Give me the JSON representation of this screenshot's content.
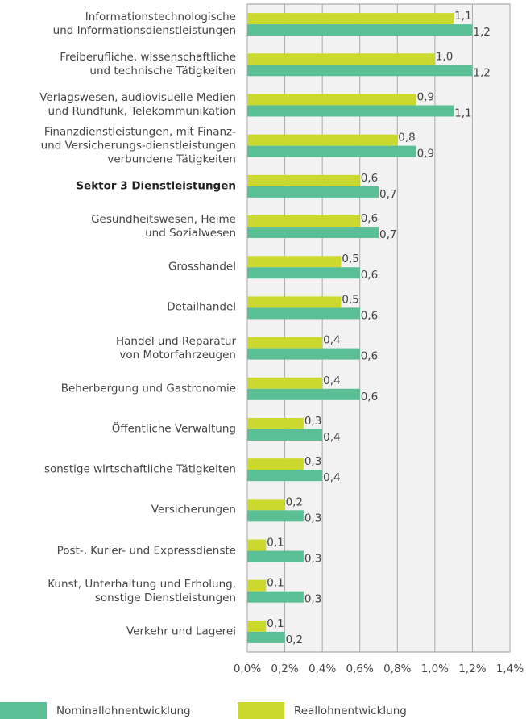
{
  "chart_data": {
    "type": "bar",
    "orientation": "horizontal",
    "categories": [
      "Informationstechnologische\nund Informationsdienstleistungen",
      "Freiberufliche, wissenschaftliche\nund technische Tätigkeiten",
      "Verlagswesen, audiovisuelle Medien\nund Rundfunk, Telekommunikation",
      "Finanzdienstleistungen, mit Finanz-\nund Versicherungs-dienstleistungen\nverbundene Tätigkeiten",
      "Sektor 3 Dienstleistungen",
      "Gesundheitswesen, Heime\nund Sozialwesen",
      "Grosshandel",
      "Detailhandel",
      "Handel und Reparatur\nvon Motorfahrzeugen",
      "Beherbergung und Gastronomie",
      "Öffentliche Verwaltung",
      "sonstige wirtschaftliche Tätigkeiten",
      "Versicherungen",
      "Post-, Kurier- und Expressdienste",
      "Kunst, Unterhaltung und Erholung,\nsonstige Dienstleistungen",
      "Verkehr und Lagerei"
    ],
    "emphasized_categories": [
      4
    ],
    "series": [
      {
        "name": "Nominallohnentwicklung",
        "color": "#5bbf95",
        "values": [
          1.2,
          1.2,
          1.1,
          0.9,
          0.7,
          0.7,
          0.6,
          0.6,
          0.6,
          0.6,
          0.4,
          0.4,
          0.3,
          0.3,
          0.3,
          0.2
        ],
        "value_labels": [
          "1,2",
          "1,2",
          "1,1",
          "0,9",
          "0,7",
          "0,7",
          "0,6",
          "0,6",
          "0,6",
          "0,6",
          "0,4",
          "0,4",
          "0,3",
          "0,3",
          "0,3",
          "0,2"
        ]
      },
      {
        "name": "Reallohnentwicklung",
        "color": "#cbd92e",
        "values": [
          1.1,
          1.0,
          0.9,
          0.8,
          0.6,
          0.6,
          0.5,
          0.5,
          0.4,
          0.4,
          0.3,
          0.3,
          0.2,
          0.1,
          0.1,
          0.1
        ],
        "value_labels": [
          "1,1",
          "1,0",
          "0,9",
          "0,8",
          "0,6",
          "0,6",
          "0,5",
          "0,5",
          "0,4",
          "0,4",
          "0,3",
          "0,3",
          "0,2",
          "0,1",
          "0,1",
          "0,1"
        ]
      }
    ],
    "xlim": [
      0,
      1.4
    ],
    "xticks": [
      {
        "value": 0,
        "label": "0,0%"
      },
      {
        "value": 0.2,
        "label": "0,2%"
      },
      {
        "value": 0.4,
        "label": "0,4%"
      },
      {
        "value": 0.6,
        "label": "0,6%"
      },
      {
        "value": 0.8,
        "label": "0,8%"
      },
      {
        "value": 1.0,
        "label": "1,0%"
      },
      {
        "value": 1.2,
        "label": "1,2%"
      },
      {
        "value": 1.4,
        "label": "1,4%"
      }
    ],
    "grid": true
  }
}
